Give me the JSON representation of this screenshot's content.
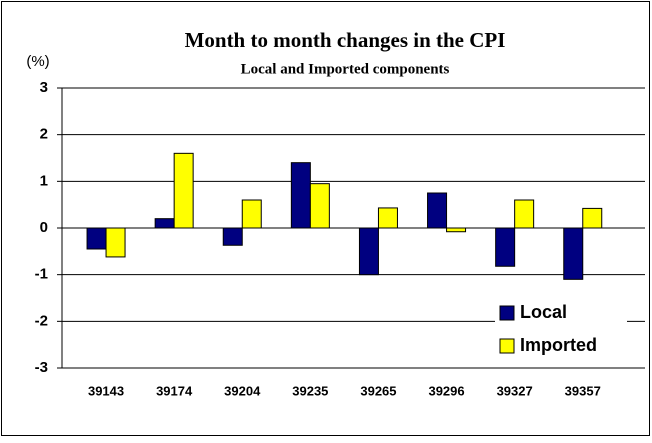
{
  "chart_data": {
    "type": "bar",
    "title": "Month to month changes in the CPI",
    "subtitle": "Local and Imported components",
    "y_label": "(%)",
    "categories": [
      "39143",
      "39174",
      "39204",
      "39235",
      "39265",
      "39296",
      "39327",
      "39357"
    ],
    "series": [
      {
        "name": "Local",
        "color": "#000080",
        "values": [
          -0.45,
          0.2,
          -0.37,
          1.4,
          -1.0,
          0.75,
          -0.82,
          -1.1
        ]
      },
      {
        "name": "Imported",
        "color": "#ffff00",
        "values": [
          -0.62,
          1.6,
          0.6,
          0.95,
          0.43,
          -0.08,
          0.6,
          0.42
        ]
      }
    ],
    "ylim": [
      -3,
      3
    ],
    "yticks": [
      -3,
      -2,
      -1,
      0,
      1,
      2,
      3
    ],
    "grid": true,
    "legend": "lower right"
  }
}
